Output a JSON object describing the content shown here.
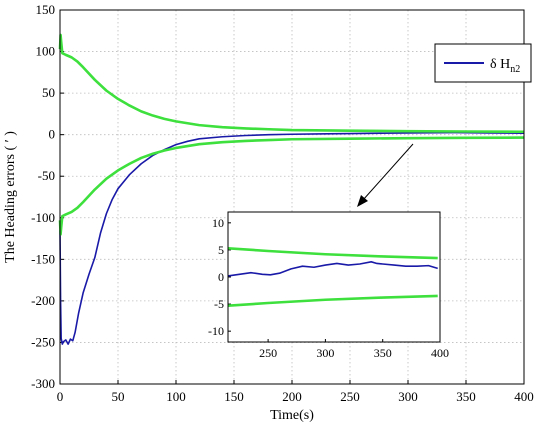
{
  "chart_data": {
    "type": "line",
    "xlabel": "Time(s)",
    "ylabel": "The Heading errors ( ′ )",
    "xlim": [
      0,
      400
    ],
    "ylim": [
      -300,
      150
    ],
    "xticks": [
      0,
      50,
      100,
      150,
      200,
      250,
      300,
      350,
      400
    ],
    "yticks": [
      150,
      100,
      50,
      0,
      -50,
      -100,
      -150,
      -200,
      -250,
      -300
    ],
    "grid": true,
    "legend": {
      "position": "top-right",
      "entries": [
        {
          "main": "δ H",
          "sub": "n2",
          "color": "#1a1aa8"
        }
      ]
    },
    "colors": {
      "error": "#1a1aa8",
      "bound": "#3de03d"
    },
    "series": [
      {
        "name": "δ Hn2",
        "color": "#1a1aa8",
        "x": [
          0,
          0.5,
          1,
          2,
          3,
          5,
          7,
          9,
          11,
          13,
          16,
          20,
          25,
          30,
          35,
          40,
          45,
          50,
          60,
          70,
          80,
          90,
          100,
          110,
          120,
          140,
          160,
          180,
          200,
          230,
          260,
          300,
          340,
          370,
          400
        ],
        "y": [
          -115,
          -200,
          -245,
          -252,
          -249,
          -247,
          -252,
          -246,
          -248,
          -238,
          -215,
          -190,
          -168,
          -148,
          -118,
          -95,
          -78,
          -65,
          -48,
          -35,
          -25,
          -18,
          -12,
          -8,
          -5,
          -2.5,
          -1,
          0,
          0.5,
          1,
          1.5,
          2,
          2.5,
          2,
          1.8
        ]
      },
      {
        "color": "#3de03d",
        "x": [
          0,
          0.5,
          1,
          2,
          5,
          10,
          15,
          20,
          30,
          40,
          50,
          60,
          70,
          80,
          90,
          100,
          120,
          140,
          160,
          180,
          200,
          250,
          300,
          350,
          400
        ],
        "y": [
          103,
          120,
          112,
          98,
          96,
          93,
          88,
          81,
          66,
          53,
          43,
          35,
          28,
          23,
          19,
          16,
          11.5,
          9,
          7.5,
          6.5,
          5.5,
          4.8,
          4.2,
          3.8,
          3.5
        ]
      },
      {
        "color": "#3de03d",
        "x": [
          0,
          0.5,
          1,
          2,
          5,
          10,
          15,
          20,
          30,
          40,
          50,
          60,
          70,
          80,
          90,
          100,
          120,
          140,
          160,
          180,
          200,
          250,
          300,
          350,
          400
        ],
        "y": [
          -103,
          -120,
          -112,
          -98,
          -96,
          -93,
          -88,
          -81,
          -66,
          -53,
          -43,
          -35,
          -28,
          -23,
          -19,
          -16,
          -11.5,
          -9,
          -7.5,
          -6.5,
          -5.5,
          -4.8,
          -4.2,
          -3.8,
          -3.5
        ]
      }
    ],
    "inset": {
      "xlim": [
        215,
        400
      ],
      "ylim": [
        -12,
        12
      ],
      "xticks": [
        250,
        300,
        350,
        400
      ],
      "yticks": [
        10,
        5,
        0,
        -5,
        -10
      ],
      "grid": false,
      "series": [
        {
          "color": "#1a1aa8",
          "x": [
            215,
            225,
            235,
            245,
            252,
            260,
            270,
            280,
            290,
            300,
            310,
            320,
            330,
            340,
            345,
            350,
            360,
            370,
            380,
            390,
            398
          ],
          "y": [
            0.2,
            0.5,
            0.8,
            0.5,
            0.4,
            0.7,
            1.5,
            2.0,
            1.8,
            2.2,
            2.5,
            2.2,
            2.4,
            2.8,
            2.5,
            2.4,
            2.2,
            2.0,
            2.0,
            2.1,
            1.6
          ]
        },
        {
          "color": "#3de03d",
          "x": [
            215,
            250,
            300,
            350,
            398
          ],
          "y": [
            5.3,
            4.8,
            4.2,
            3.8,
            3.5
          ]
        },
        {
          "color": "#3de03d",
          "x": [
            215,
            250,
            300,
            350,
            398
          ],
          "y": [
            -5.3,
            -4.8,
            -4.2,
            -3.8,
            -3.5
          ]
        }
      ]
    }
  }
}
